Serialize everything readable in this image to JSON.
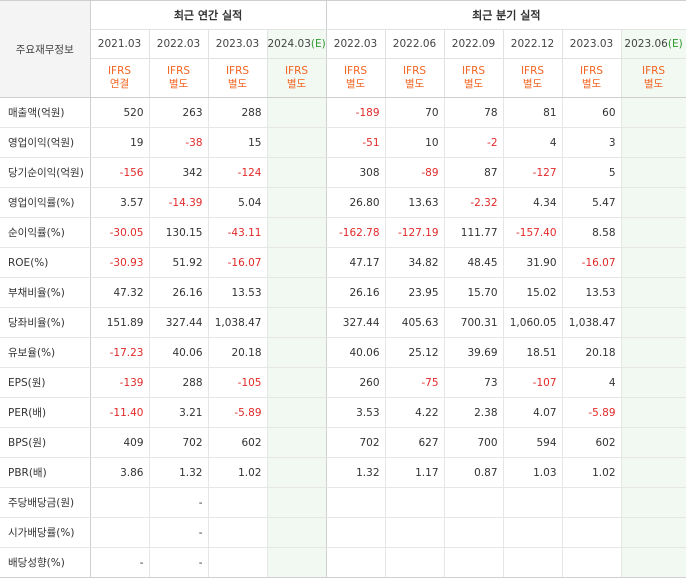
{
  "header": {
    "label": "주요재무정보",
    "annual_title": "최근 연간 실적",
    "quarter_title": "최근 분기 실적",
    "estimate_mark": "(E)"
  },
  "annual": {
    "periods": [
      {
        "date": "2021.03",
        "estimate": false,
        "ifrs": "IFRS",
        "basis": "연결"
      },
      {
        "date": "2022.03",
        "estimate": false,
        "ifrs": "IFRS",
        "basis": "별도"
      },
      {
        "date": "2023.03",
        "estimate": false,
        "ifrs": "IFRS",
        "basis": "별도"
      },
      {
        "date": "2024.03",
        "estimate": true,
        "ifrs": "IFRS",
        "basis": "별도"
      }
    ]
  },
  "quarter": {
    "periods": [
      {
        "date": "2022.03",
        "estimate": false,
        "ifrs": "IFRS",
        "basis": "별도"
      },
      {
        "date": "2022.06",
        "estimate": false,
        "ifrs": "IFRS",
        "basis": "별도"
      },
      {
        "date": "2022.09",
        "estimate": false,
        "ifrs": "IFRS",
        "basis": "별도"
      },
      {
        "date": "2022.12",
        "estimate": false,
        "ifrs": "IFRS",
        "basis": "별도"
      },
      {
        "date": "2023.03",
        "estimate": false,
        "ifrs": "IFRS",
        "basis": "별도"
      },
      {
        "date": "2023.06",
        "estimate": true,
        "ifrs": "IFRS",
        "basis": "별도"
      }
    ]
  },
  "rows": [
    {
      "label": "매출액(억원)",
      "group_start": false,
      "annual": [
        "520",
        "263",
        "288",
        ""
      ],
      "quarter": [
        "-189",
        "70",
        "78",
        "81",
        "60",
        ""
      ]
    },
    {
      "label": "영업이익(억원)",
      "group_start": false,
      "annual": [
        "19",
        "-38",
        "15",
        ""
      ],
      "quarter": [
        "-51",
        "10",
        "-2",
        "4",
        "3",
        ""
      ]
    },
    {
      "label": "당기순이익(억원)",
      "group_start": false,
      "annual": [
        "-156",
        "342",
        "-124",
        ""
      ],
      "quarter": [
        "308",
        "-89",
        "87",
        "-127",
        "5",
        ""
      ]
    },
    {
      "label": "영업이익률(%)",
      "group_start": true,
      "annual": [
        "3.57",
        "-14.39",
        "5.04",
        ""
      ],
      "quarter": [
        "26.80",
        "13.63",
        "-2.32",
        "4.34",
        "5.47",
        ""
      ]
    },
    {
      "label": "순이익률(%)",
      "group_start": false,
      "annual": [
        "-30.05",
        "130.15",
        "-43.11",
        ""
      ],
      "quarter": [
        "-162.78",
        "-127.19",
        "111.77",
        "-157.40",
        "8.58",
        ""
      ]
    },
    {
      "label": "ROE(%)",
      "group_start": false,
      "annual": [
        "-30.93",
        "51.92",
        "-16.07",
        ""
      ],
      "quarter": [
        "47.17",
        "34.82",
        "48.45",
        "31.90",
        "-16.07",
        ""
      ]
    },
    {
      "label": "부채비율(%)",
      "group_start": true,
      "annual": [
        "47.32",
        "26.16",
        "13.53",
        ""
      ],
      "quarter": [
        "26.16",
        "23.95",
        "15.70",
        "15.02",
        "13.53",
        ""
      ]
    },
    {
      "label": "당좌비율(%)",
      "group_start": false,
      "annual": [
        "151.89",
        "327.44",
        "1,038.47",
        ""
      ],
      "quarter": [
        "327.44",
        "405.63",
        "700.31",
        "1,060.05",
        "1,038.47",
        ""
      ]
    },
    {
      "label": "유보율(%)",
      "group_start": false,
      "annual": [
        "-17.23",
        "40.06",
        "20.18",
        ""
      ],
      "quarter": [
        "40.06",
        "25.12",
        "39.69",
        "18.51",
        "20.18",
        ""
      ]
    },
    {
      "label": "EPS(원)",
      "group_start": true,
      "annual": [
        "-139",
        "288",
        "-105",
        ""
      ],
      "quarter": [
        "260",
        "-75",
        "73",
        "-107",
        "4",
        ""
      ]
    },
    {
      "label": "PER(배)",
      "group_start": false,
      "annual": [
        "-11.40",
        "3.21",
        "-5.89",
        ""
      ],
      "quarter": [
        "3.53",
        "4.22",
        "2.38",
        "4.07",
        "-5.89",
        ""
      ]
    },
    {
      "label": "BPS(원)",
      "group_start": false,
      "annual": [
        "409",
        "702",
        "602",
        ""
      ],
      "quarter": [
        "702",
        "627",
        "700",
        "594",
        "602",
        ""
      ]
    },
    {
      "label": "PBR(배)",
      "group_start": false,
      "annual": [
        "3.86",
        "1.32",
        "1.02",
        ""
      ],
      "quarter": [
        "1.32",
        "1.17",
        "0.87",
        "1.03",
        "1.02",
        ""
      ]
    },
    {
      "label": "주당배당금(원)",
      "group_start": true,
      "annual": [
        "",
        "-",
        "",
        ""
      ],
      "quarter": [
        "",
        "",
        "",
        "",
        "",
        ""
      ]
    },
    {
      "label": "시가배당률(%)",
      "group_start": false,
      "annual": [
        "",
        "-",
        "",
        ""
      ],
      "quarter": [
        "",
        "",
        "",
        "",
        "",
        ""
      ]
    },
    {
      "label": "배당성향(%)",
      "group_start": false,
      "annual": [
        "-",
        "-",
        "",
        ""
      ],
      "quarter": [
        "",
        "",
        "",
        "",
        "",
        ""
      ]
    }
  ]
}
